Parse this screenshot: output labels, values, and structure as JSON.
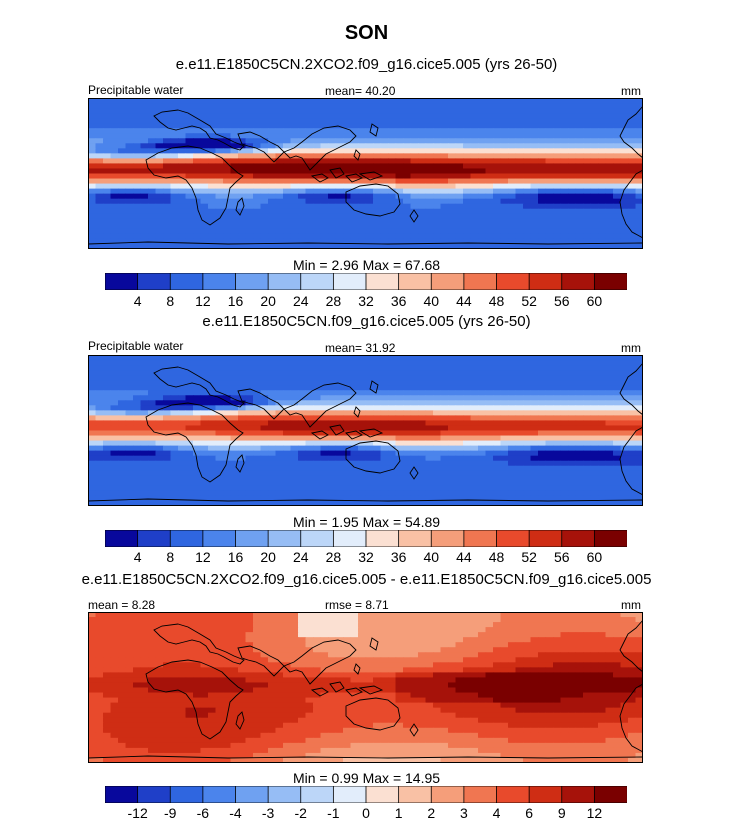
{
  "title": "SON",
  "panels": [
    {
      "subtitle": "e.e11.E1850C5CN.2XCO2.f09_g16.cice5.005 (yrs 26-50)",
      "left_label": "Precipitable water",
      "center_label": "mean=  40.20",
      "units": "mm",
      "minmax": "Min =   2.96 Max =  67.68",
      "scale": "abs",
      "intensity": 1.0
    },
    {
      "subtitle": "e.e11.E1850C5CN.f09_g16.cice5.005 (yrs 26-50)",
      "left_label": "Precipitable water",
      "center_label": "mean=  31.92",
      "units": "mm",
      "minmax": "Min =   1.95 Max =  54.89",
      "scale": "abs",
      "intensity": 0.78
    },
    {
      "subtitle": "e.e11.E1850C5CN.2XCO2.f09_g16.cice5.005 - e.e11.E1850C5CN.f09_g16.cice5.005",
      "left_label": "mean =  8.28",
      "center_label": "rmse =  8.71",
      "units": "mm",
      "minmax": "Min =   0.99 Max =  14.95",
      "scale": "diff",
      "intensity": 1.0
    }
  ],
  "colorbars": {
    "abs": {
      "labels": [
        "4",
        "8",
        "12",
        "16",
        "20",
        "24",
        "28",
        "32",
        "36",
        "40",
        "44",
        "48",
        "52",
        "56",
        "60"
      ],
      "colors": [
        "#08089c",
        "#1f3fc8",
        "#2f66e0",
        "#4b84ec",
        "#6fa1f1",
        "#96bdf5",
        "#bcd6f8",
        "#e2edfb",
        "#fbe0d2",
        "#f9c1a5",
        "#f59e7a",
        "#f07651",
        "#e84a2c",
        "#cf2d14",
        "#a6120a",
        "#7a0000"
      ]
    },
    "diff": {
      "labels": [
        "-12",
        "-9",
        "-6",
        "-4",
        "-3",
        "-2",
        "-1",
        "0",
        "1",
        "2",
        "3",
        "4",
        "6",
        "9",
        "12"
      ],
      "colors": [
        "#08089c",
        "#1f3fc8",
        "#2f66e0",
        "#4b84ec",
        "#6fa1f1",
        "#96bdf5",
        "#bcd6f8",
        "#e2edfb",
        "#fbe0d2",
        "#f9c1a5",
        "#f59e7a",
        "#f07651",
        "#e84a2c",
        "#cf2d14",
        "#a6120a",
        "#7a0000"
      ]
    }
  }
}
